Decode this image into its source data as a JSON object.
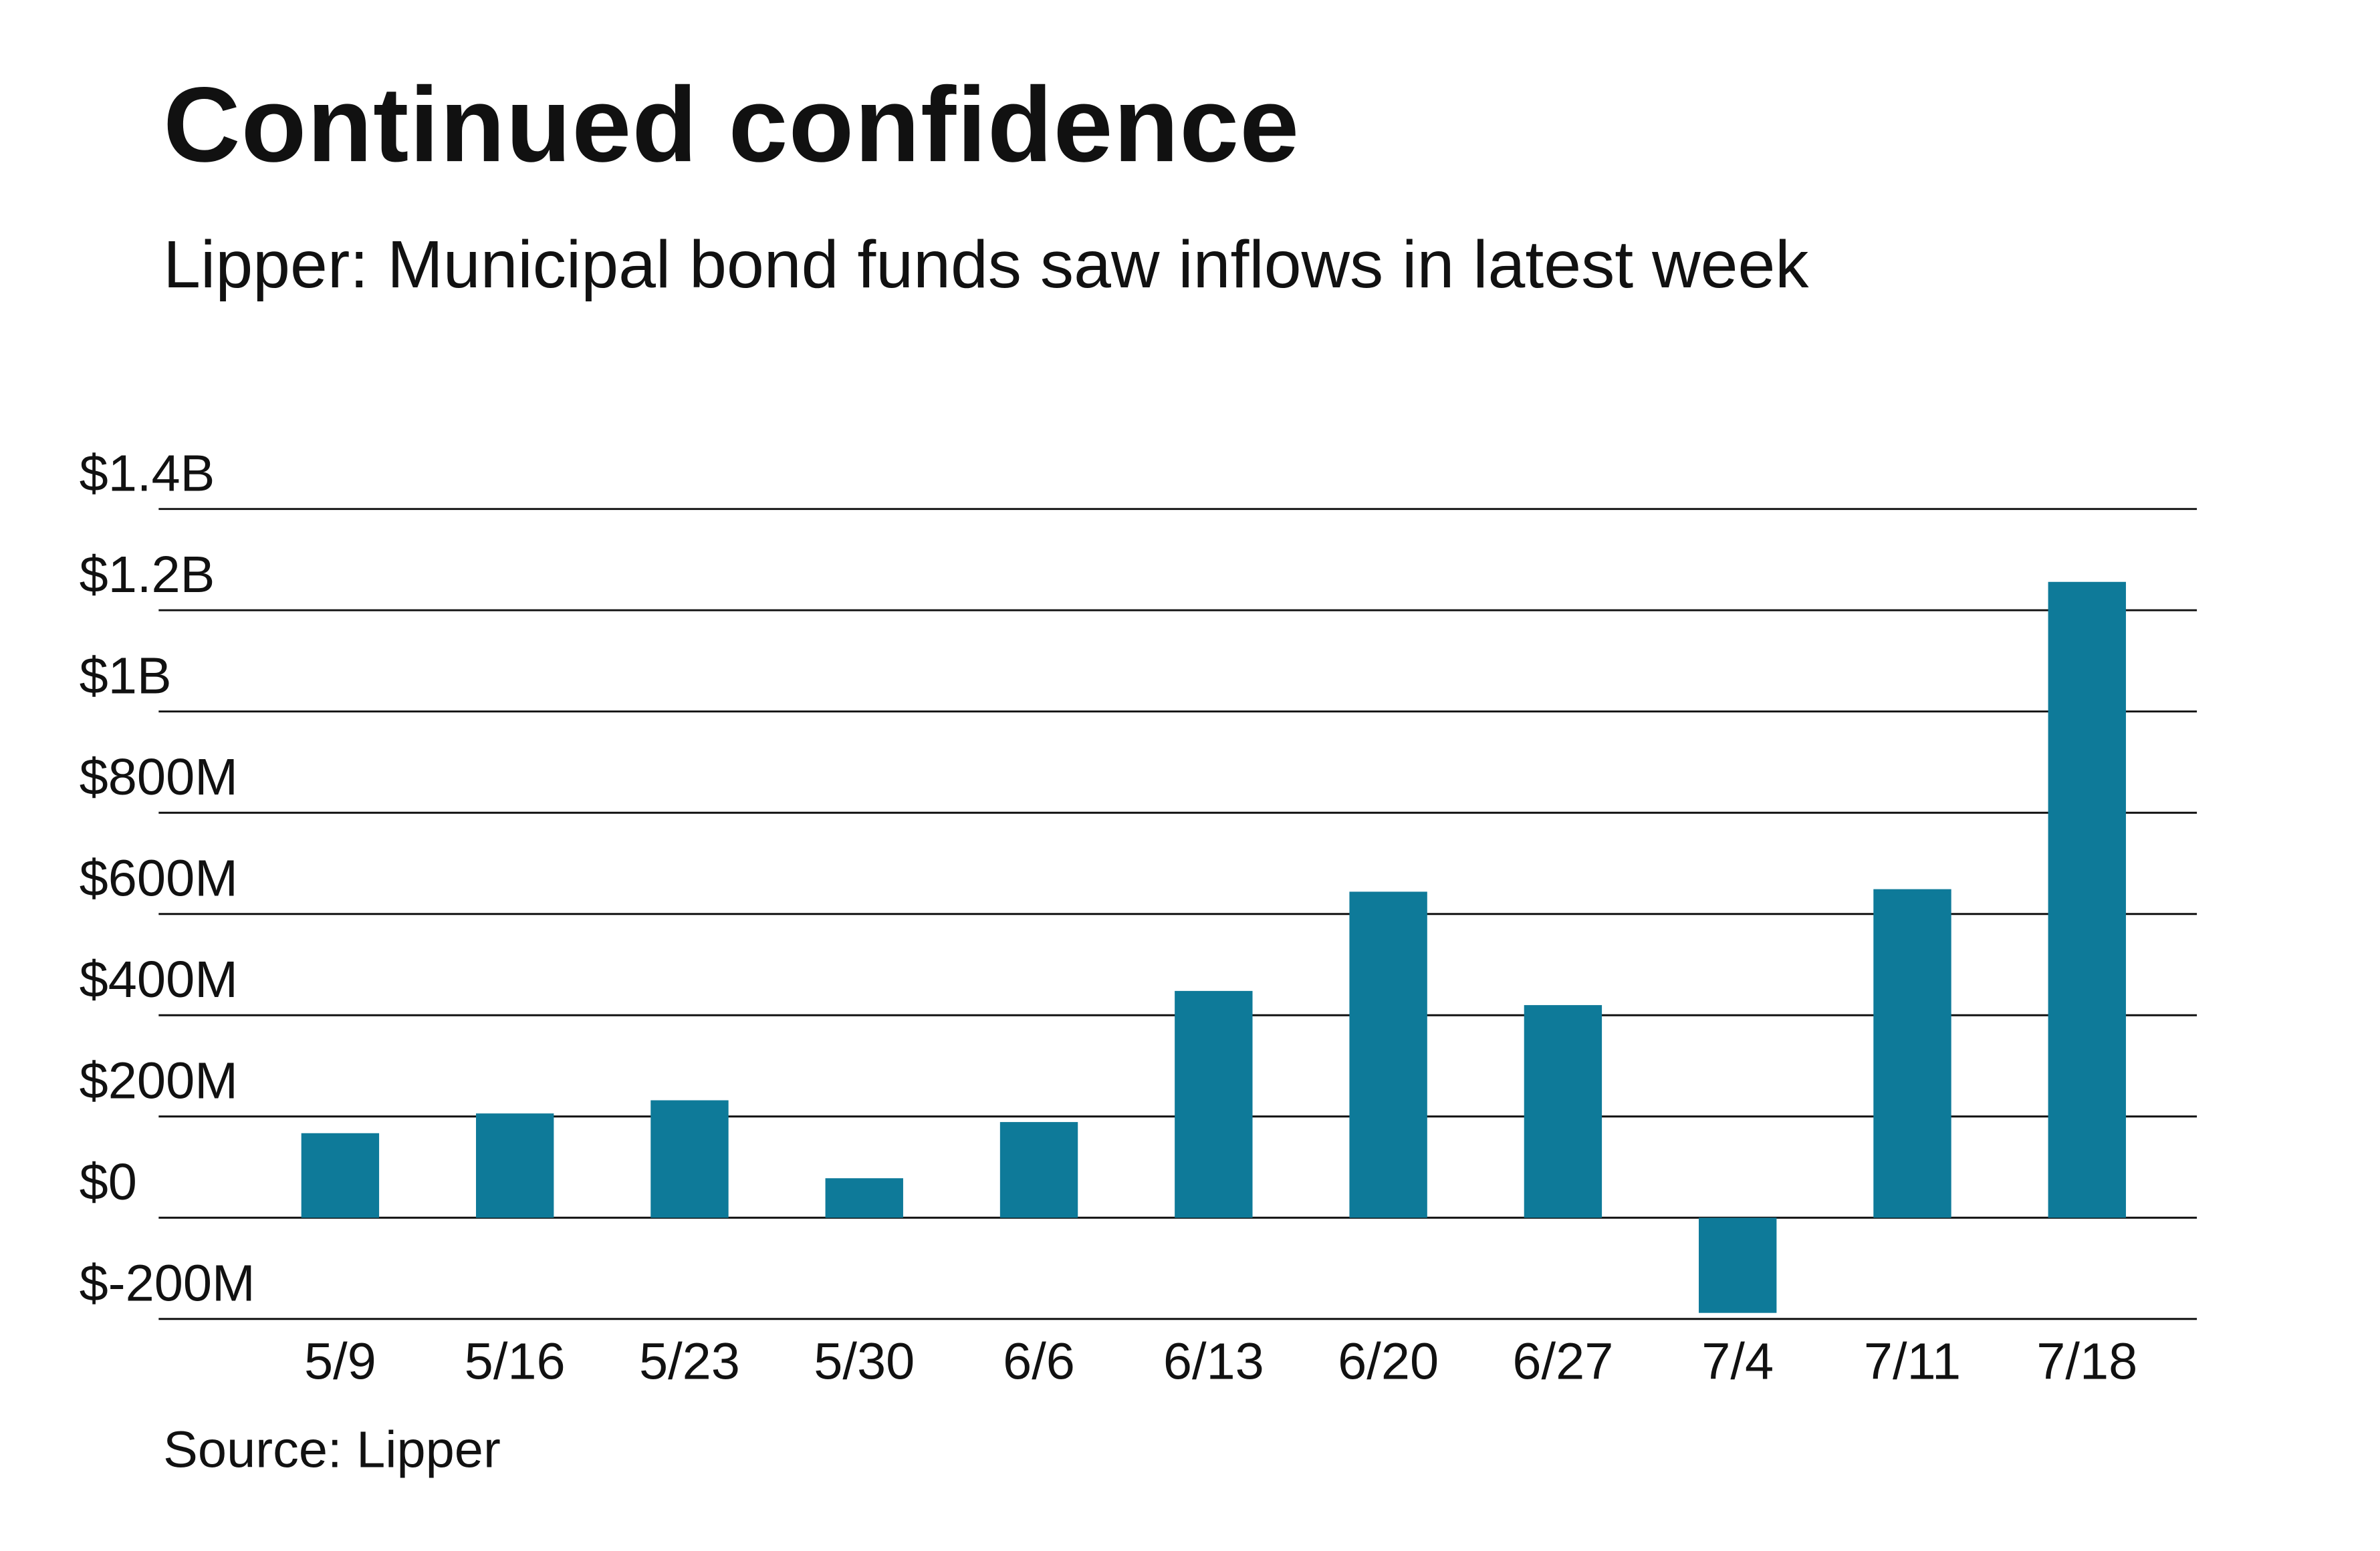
{
  "title": "Continued confidence",
  "subtitle": "Lipper: Municipal bond funds saw inflows in latest week",
  "source": "Source: Lipper",
  "chart_data": {
    "type": "bar",
    "title": "Continued confidence",
    "subtitle": "Lipper: Municipal bond funds saw inflows in latest week",
    "xlabel": "",
    "ylabel": "",
    "categories": [
      "5/9",
      "5/16",
      "5/23",
      "5/30",
      "6/6",
      "6/13",
      "6/20",
      "6/27",
      "7/4",
      "7/11",
      "7/18"
    ],
    "values": [
      167,
      206,
      232,
      78,
      189,
      448,
      644,
      420,
      -188,
      649,
      1256
    ],
    "unit": "millions of dollars",
    "ylim": [
      -200,
      1400
    ],
    "yticks": [
      -200,
      0,
      200,
      400,
      600,
      800,
      1000,
      1200,
      1400
    ],
    "ytick_labels": [
      "$-200M",
      "$0",
      "$200M",
      "$400M",
      "$600M",
      "$800M",
      "$1B",
      "$1.2B",
      "$1.4B"
    ],
    "grid": true,
    "legend": "none",
    "bar_color": "#0e7a99",
    "source": "Source: Lipper"
  }
}
